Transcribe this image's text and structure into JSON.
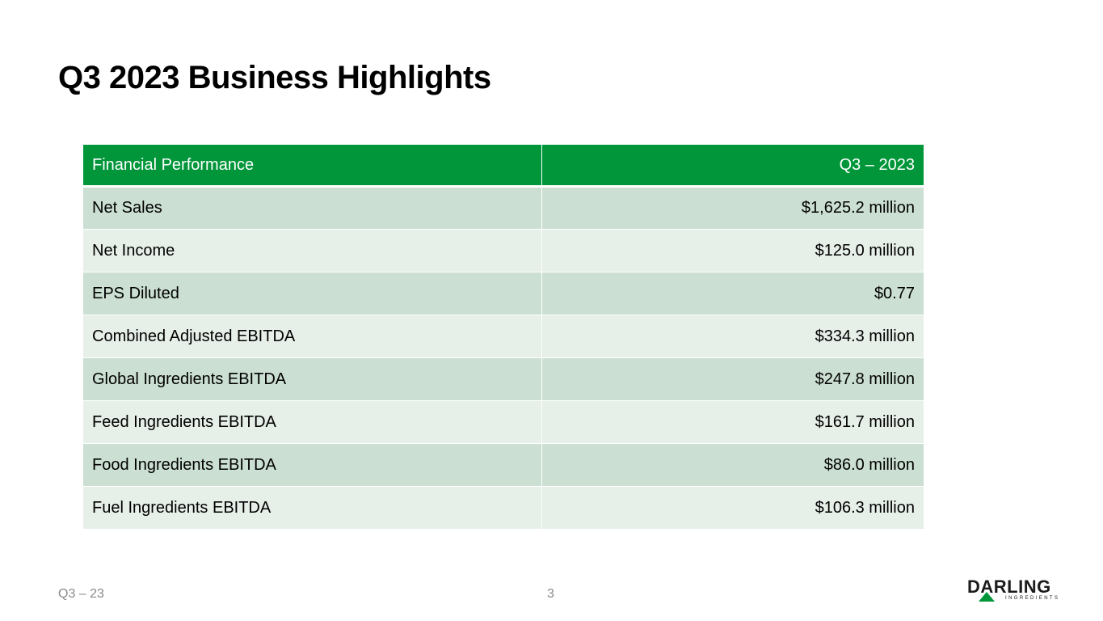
{
  "slide": {
    "title": "Q3 2023 Business Highlights",
    "footer_left": "Q3 – 23",
    "page_number": "3"
  },
  "table": {
    "headers": [
      "Financial Performance",
      "Q3 – 2023"
    ],
    "rows": [
      {
        "label": "Net Sales",
        "value": "$1,625.2 million"
      },
      {
        "label": "Net Income",
        "value": "$125.0 million"
      },
      {
        "label": "EPS Diluted",
        "value": "$0.77"
      },
      {
        "label": "Combined Adjusted EBITDA",
        "value": "$334.3 million"
      },
      {
        "label": "Global Ingredients EBITDA",
        "value": "$247.8 million"
      },
      {
        "label": "Feed Ingredients EBITDA",
        "value": "$161.7 million"
      },
      {
        "label": "Food Ingredients EBITDA",
        "value": "$86.0 million"
      },
      {
        "label": "Fuel Ingredients EBITDA",
        "value": "$106.3 million"
      }
    ]
  },
  "logo": {
    "name": "DARLING",
    "subtitle": "INGREDIENTS",
    "icon": "green-triangle-icon"
  },
  "colors": {
    "header_bg": "#009639",
    "row_dark": "#cbdfd2",
    "row_light": "#e7efe9",
    "footer_text": "#8a8a8a"
  }
}
